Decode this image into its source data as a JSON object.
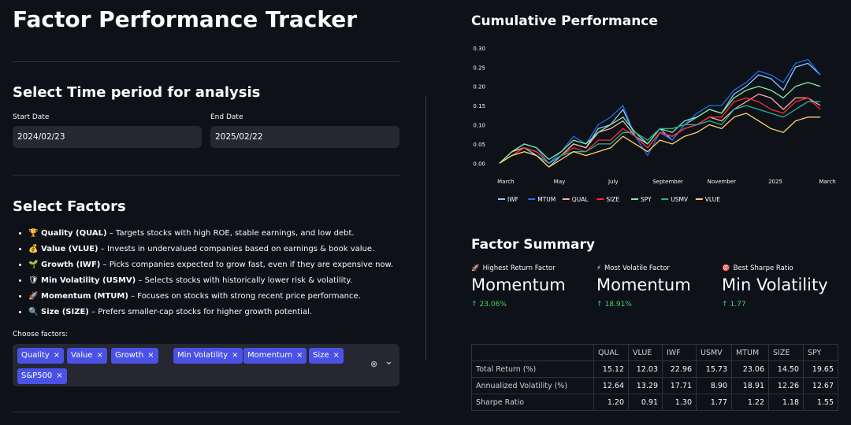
{
  "app": {
    "title": "Factor Performance Tracker"
  },
  "period": {
    "heading": "Select Time period for analysis",
    "start_label": "Start Date",
    "start_value": "2024/02/23",
    "end_label": "End Date",
    "end_value": "2025/02/22"
  },
  "factors": {
    "heading": "Select Factors",
    "items": [
      {
        "icon": "trophy-icon",
        "glyph": "🏆",
        "name": "Quality (QUAL)",
        "desc": " – Targets stocks with high ROE, stable earnings, and low debt."
      },
      {
        "icon": "money-bag-icon",
        "glyph": "💰",
        "name": "Value (VLUE)",
        "desc": " – Invests in undervalued companies based on earnings & book value."
      },
      {
        "icon": "seedling-icon",
        "glyph": "🌱",
        "name": "Growth (IWF)",
        "desc": " – Picks companies expected to grow fast, even if they are expensive now."
      },
      {
        "icon": "shield-icon",
        "glyph": "🛡",
        "name": "Min Volatility (USMV)",
        "desc": " – Selects stocks with historically lower risk & volatility."
      },
      {
        "icon": "rocket-icon",
        "glyph": "🚀",
        "name": "Momentum (MTUM)",
        "desc": " – Focuses on stocks with strong recent price performance."
      },
      {
        "icon": "magnifier-icon",
        "glyph": "🔍",
        "name": "Size (SIZE)",
        "desc": " – Prefers smaller-cap stocks for higher growth potential."
      }
    ],
    "choose_label": "Choose factors:",
    "selected": [
      "Quality",
      "Value",
      "Growth",
      "Min Volatility",
      "Momentum",
      "Size",
      "S&P500"
    ],
    "remove_glyph": "×",
    "clear_glyph": "⊗",
    "dropdown_glyph": "⌄"
  },
  "performance": {
    "heading": "Cumulative Performance"
  },
  "chart_data": {
    "type": "line",
    "title": "",
    "xlabel": "",
    "ylabel": "",
    "x": [
      "2024-02-23",
      "2024-03-08",
      "2024-03-22",
      "2024-04-05",
      "2024-04-19",
      "2024-05-03",
      "2024-05-17",
      "2024-05-31",
      "2024-06-14",
      "2024-06-28",
      "2024-07-12",
      "2024-07-26",
      "2024-08-09",
      "2024-08-23",
      "2024-09-06",
      "2024-09-20",
      "2024-10-04",
      "2024-10-18",
      "2024-11-01",
      "2024-11-15",
      "2024-11-29",
      "2024-12-13",
      "2024-12-27",
      "2025-01-10",
      "2025-01-24",
      "2025-02-07",
      "2025-02-21"
    ],
    "xtick_labels": [
      "March",
      "May",
      "July",
      "September",
      "November",
      "2025",
      "March"
    ],
    "xtick_positions": [
      "2024-03-01",
      "2024-05-01",
      "2024-07-01",
      "2024-09-01",
      "2024-11-01",
      "2025-01-01",
      "2025-03-01"
    ],
    "ylim": [
      -0.03,
      0.31
    ],
    "yticks": [
      0.0,
      0.05,
      0.1,
      0.15,
      0.2,
      0.25,
      0.3
    ],
    "ytick_labels": [
      "0.00",
      "0.05",
      "0.10",
      "0.15",
      "0.20",
      "0.25",
      "0.30"
    ],
    "grid": false,
    "legend": "bottom",
    "series": [
      {
        "name": "IWF",
        "color": "#8fc7ff",
        "values": [
          0.0,
          0.03,
          0.04,
          0.02,
          -0.01,
          0.02,
          0.05,
          0.04,
          0.09,
          0.1,
          0.14,
          0.07,
          0.05,
          0.09,
          0.06,
          0.1,
          0.12,
          0.14,
          0.13,
          0.18,
          0.2,
          0.23,
          0.22,
          0.19,
          0.25,
          0.26,
          0.23
        ]
      },
      {
        "name": "MTUM",
        "color": "#1f6ff0",
        "values": [
          0.0,
          0.03,
          0.05,
          0.04,
          0.0,
          0.03,
          0.07,
          0.05,
          0.1,
          0.12,
          0.15,
          0.07,
          0.02,
          0.08,
          0.06,
          0.1,
          0.13,
          0.15,
          0.15,
          0.19,
          0.21,
          0.24,
          0.23,
          0.21,
          0.26,
          0.27,
          0.23
        ]
      },
      {
        "name": "QUAL",
        "color": "#ffacac",
        "values": [
          0.0,
          0.03,
          0.04,
          0.03,
          0.0,
          0.02,
          0.05,
          0.04,
          0.08,
          0.09,
          0.11,
          0.07,
          0.04,
          0.08,
          0.07,
          0.09,
          0.1,
          0.12,
          0.11,
          0.14,
          0.16,
          0.18,
          0.17,
          0.14,
          0.17,
          0.17,
          0.15
        ]
      },
      {
        "name": "SIZE",
        "color": "#ff2b2b",
        "values": [
          0.0,
          0.02,
          0.04,
          0.03,
          0.0,
          0.02,
          0.04,
          0.03,
          0.06,
          0.06,
          0.09,
          0.07,
          0.04,
          0.08,
          0.07,
          0.09,
          0.1,
          0.12,
          0.12,
          0.16,
          0.17,
          0.16,
          0.14,
          0.13,
          0.16,
          0.17,
          0.14
        ]
      },
      {
        "name": "SPY",
        "color": "#7defa1",
        "values": [
          0.0,
          0.03,
          0.05,
          0.04,
          0.01,
          0.03,
          0.06,
          0.05,
          0.08,
          0.1,
          0.12,
          0.08,
          0.05,
          0.09,
          0.08,
          0.11,
          0.12,
          0.14,
          0.13,
          0.17,
          0.19,
          0.2,
          0.19,
          0.17,
          0.2,
          0.21,
          0.2
        ]
      },
      {
        "name": "USMV",
        "color": "#29b09d",
        "values": [
          0.0,
          0.02,
          0.03,
          0.02,
          0.0,
          0.02,
          0.03,
          0.03,
          0.05,
          0.05,
          0.08,
          0.08,
          0.06,
          0.09,
          0.09,
          0.1,
          0.1,
          0.11,
          0.1,
          0.14,
          0.15,
          0.14,
          0.13,
          0.12,
          0.14,
          0.16,
          0.16
        ]
      },
      {
        "name": "VLUE",
        "color": "#ffd16a",
        "values": [
          0.0,
          0.02,
          0.03,
          0.02,
          -0.01,
          0.01,
          0.03,
          0.02,
          0.03,
          0.04,
          0.07,
          0.05,
          0.03,
          0.06,
          0.05,
          0.07,
          0.08,
          0.1,
          0.09,
          0.12,
          0.13,
          0.11,
          0.09,
          0.08,
          0.11,
          0.12,
          0.12
        ]
      }
    ]
  },
  "summary": {
    "heading": "Factor Summary",
    "metrics": [
      {
        "icon": "rocket-icon",
        "glyph": "🚀",
        "label": "Highest Return Factor",
        "value": "Momentum",
        "delta": "23.06%"
      },
      {
        "icon": "lightning-icon",
        "glyph": "⚡",
        "label": "Most Volatile Factor",
        "value": "Momentum",
        "delta": "18.91%"
      },
      {
        "icon": "target-icon",
        "glyph": "🎯",
        "label": "Best Sharpe Ratio",
        "value": "Min Volatility",
        "delta": "1.77"
      }
    ],
    "delta_arrow": "↑",
    "table": {
      "columns": [
        "QUAL",
        "VLUE",
        "IWF",
        "USMV",
        "MTUM",
        "SIZE",
        "SPY"
      ],
      "rows": [
        {
          "label": "Total Return (%)",
          "values": [
            "15.12",
            "12.03",
            "22.96",
            "15.73",
            "23.06",
            "14.50",
            "19.65"
          ]
        },
        {
          "label": "Annualized Volatility (%)",
          "values": [
            "12.64",
            "13.29",
            "17.71",
            "8.90",
            "18.91",
            "12.26",
            "12.67"
          ]
        },
        {
          "label": "Sharpe Ratio",
          "values": [
            "1.20",
            "0.91",
            "1.30",
            "1.77",
            "1.22",
            "1.18",
            "1.55"
          ]
        }
      ]
    }
  }
}
